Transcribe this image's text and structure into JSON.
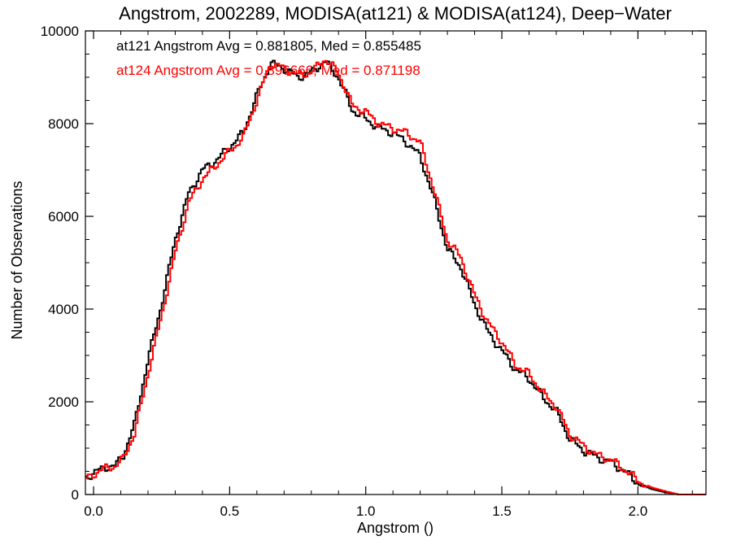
{
  "chart_data": {
    "type": "line",
    "title": "Angstrom, 2002289, MODISA(at121) & MODISA(at124), Deep−Water",
    "xlabel": "Angstrom ()",
    "ylabel": "Number of Observations",
    "xlim": [
      -0.03,
      2.25
    ],
    "ylim": [
      0,
      10000
    ],
    "x_ticks": [
      0.0,
      0.5,
      1.0,
      1.5,
      2.0
    ],
    "x_tick_labels": [
      "0.0",
      "0.5",
      "1.0",
      "1.5",
      "2.0"
    ],
    "y_ticks": [
      0,
      2000,
      4000,
      6000,
      8000,
      10000
    ],
    "y_tick_labels": [
      "0",
      "2000",
      "4000",
      "6000",
      "8000",
      "10000"
    ],
    "step": "histogram",
    "series": [
      {
        "name": "at121",
        "color": "#000000",
        "annotation": "at121 Angstrom Avg = 0.881805, Med = 0.855485",
        "points": [
          [
            -0.03,
            350
          ],
          [
            0.0,
            470
          ],
          [
            0.05,
            600
          ],
          [
            0.08,
            620
          ],
          [
            0.11,
            850
          ],
          [
            0.15,
            1500
          ],
          [
            0.2,
            2900
          ],
          [
            0.25,
            4100
          ],
          [
            0.3,
            5500
          ],
          [
            0.35,
            6500
          ],
          [
            0.4,
            7000
          ],
          [
            0.45,
            7200
          ],
          [
            0.5,
            7500
          ],
          [
            0.55,
            7800
          ],
          [
            0.6,
            8600
          ],
          [
            0.65,
            9300
          ],
          [
            0.7,
            9200
          ],
          [
            0.75,
            9000
          ],
          [
            0.8,
            9100
          ],
          [
            0.85,
            9350
          ],
          [
            0.9,
            9000
          ],
          [
            0.95,
            8300
          ],
          [
            1.0,
            8100
          ],
          [
            1.05,
            7900
          ],
          [
            1.1,
            7800
          ],
          [
            1.15,
            7600
          ],
          [
            1.2,
            7300
          ],
          [
            1.25,
            6400
          ],
          [
            1.3,
            5300
          ],
          [
            1.35,
            4900
          ],
          [
            1.4,
            4100
          ],
          [
            1.45,
            3500
          ],
          [
            1.5,
            3100
          ],
          [
            1.55,
            2700
          ],
          [
            1.6,
            2500
          ],
          [
            1.65,
            2100
          ],
          [
            1.7,
            1800
          ],
          [
            1.75,
            1200
          ],
          [
            1.8,
            950
          ],
          [
            1.85,
            800
          ],
          [
            1.9,
            700
          ],
          [
            1.95,
            500
          ],
          [
            2.0,
            250
          ],
          [
            2.05,
            120
          ],
          [
            2.1,
            50
          ],
          [
            2.15,
            0
          ],
          [
            2.25,
            0
          ]
        ]
      },
      {
        "name": "at124",
        "color": "#ff0000",
        "annotation": "at124 Angstrom Avg = 0.896666, Med = 0.871198",
        "points": [
          [
            -0.03,
            320
          ],
          [
            0.0,
            440
          ],
          [
            0.05,
            580
          ],
          [
            0.08,
            610
          ],
          [
            0.11,
            780
          ],
          [
            0.15,
            1300
          ],
          [
            0.2,
            2600
          ],
          [
            0.25,
            3850
          ],
          [
            0.3,
            5200
          ],
          [
            0.35,
            6300
          ],
          [
            0.4,
            6800
          ],
          [
            0.45,
            7100
          ],
          [
            0.5,
            7400
          ],
          [
            0.55,
            7700
          ],
          [
            0.6,
            8500
          ],
          [
            0.65,
            9300
          ],
          [
            0.7,
            9200
          ],
          [
            0.75,
            9050
          ],
          [
            0.8,
            9100
          ],
          [
            0.85,
            9400
          ],
          [
            0.9,
            9100
          ],
          [
            0.95,
            8400
          ],
          [
            1.0,
            8250
          ],
          [
            1.05,
            8000
          ],
          [
            1.1,
            7900
          ],
          [
            1.15,
            7800
          ],
          [
            1.2,
            7600
          ],
          [
            1.25,
            6600
          ],
          [
            1.3,
            5500
          ],
          [
            1.35,
            5100
          ],
          [
            1.4,
            4300
          ],
          [
            1.45,
            3700
          ],
          [
            1.5,
            3300
          ],
          [
            1.55,
            2800
          ],
          [
            1.6,
            2600
          ],
          [
            1.65,
            2200
          ],
          [
            1.7,
            1900
          ],
          [
            1.75,
            1300
          ],
          [
            1.8,
            1050
          ],
          [
            1.85,
            850
          ],
          [
            1.9,
            750
          ],
          [
            1.95,
            550
          ],
          [
            2.0,
            300
          ],
          [
            2.05,
            150
          ],
          [
            2.1,
            70
          ],
          [
            2.15,
            0
          ],
          [
            2.25,
            0
          ]
        ]
      }
    ]
  }
}
